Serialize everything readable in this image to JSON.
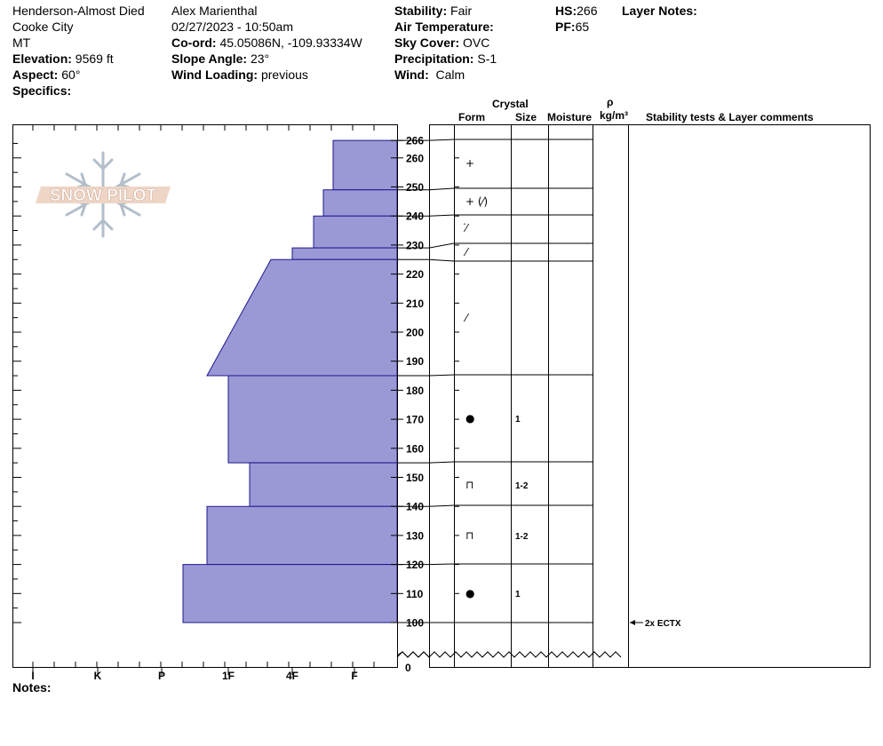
{
  "header": {
    "location": "Henderson-Almost Died",
    "area": "Cooke City",
    "state": "MT",
    "elevation_label": "Elevation:",
    "elevation": "9569 ft",
    "aspect_label": "Aspect:",
    "aspect": "60°",
    "specifics_label": "Specifics:",
    "observer": "Alex Marienthal",
    "datetime": "02/27/2023 - 10:50am",
    "coord_label": "Co-ord:",
    "coord": "45.05086N, -109.93334W",
    "slope_label": "Slope Angle:",
    "slope": "23°",
    "wind_loading_label": "Wind Loading:",
    "wind_loading": "previous",
    "stability_label": "Stability:",
    "stability": "Fair",
    "air_temp_label": "Air Temperature:",
    "sky_label": "Sky Cover:",
    "sky": "OVC",
    "precip_label": "Precipitation:",
    "precip": "S-1",
    "wind_label": "Wind:",
    "wind": "Calm",
    "hs_label": "HS:",
    "hs": "266",
    "pf_label": "PF:",
    "pf": "65",
    "layer_notes_label": "Layer Notes:"
  },
  "columns": {
    "crystal": "Crystal",
    "form": "Form",
    "size": "Size",
    "moisture": "Moisture",
    "rho": "ρ",
    "density_unit": "kg/m³",
    "stability": "Stability tests & Layer comments"
  },
  "logo_text": "SNOW PILOT",
  "notes_label": "Notes:",
  "chart_data": {
    "type": "snow_profile",
    "hardness_scale": [
      "I",
      "K",
      "P",
      "1F",
      "4F",
      "F"
    ],
    "hardness_axis_note": "hardness increases to the left",
    "height_ticks": [
      100,
      110,
      120,
      130,
      140,
      150,
      160,
      170,
      180,
      190,
      200,
      210,
      220,
      230,
      240,
      250,
      260,
      266
    ],
    "height_bottom_label": "0",
    "height_range_cm": [
      100,
      266
    ],
    "total_depth_cm": 266,
    "layers": [
      {
        "top": 266,
        "bottom": 249,
        "hardness": "F+",
        "form": "+",
        "size": "",
        "moisture": ""
      },
      {
        "top": 249,
        "bottom": 240,
        "hardness": "F-4F",
        "form": "+ (⁄)",
        "size": "",
        "moisture": ""
      },
      {
        "top": 240,
        "bottom": 229,
        "hardness": "4F-",
        "form": "⁄̇",
        "size": "",
        "moisture": ""
      },
      {
        "top": 229,
        "bottom": 225,
        "hardness": "4F",
        "form": "⁄",
        "size": "",
        "moisture": ""
      },
      {
        "top": 225,
        "bottom": 185,
        "hardness_top": "4F+",
        "hardness_bottom": "1F+",
        "form": "⁄",
        "size": "",
        "moisture": ""
      },
      {
        "top": 185,
        "bottom": 155,
        "hardness": "1F",
        "form": "●",
        "size": "1",
        "moisture": ""
      },
      {
        "top": 155,
        "bottom": 140,
        "hardness": "1F-",
        "form": "⊓",
        "size": "1-2",
        "moisture": ""
      },
      {
        "top": 140,
        "bottom": 120,
        "hardness": "1F+",
        "form": "⊓",
        "size": "1-2",
        "moisture": ""
      },
      {
        "top": 120,
        "bottom": 100,
        "hardness": "P-",
        "form": "●",
        "size": "1",
        "moisture": ""
      }
    ],
    "stability_tests": [
      {
        "height": 100,
        "label": "2x ECTX"
      }
    ]
  }
}
